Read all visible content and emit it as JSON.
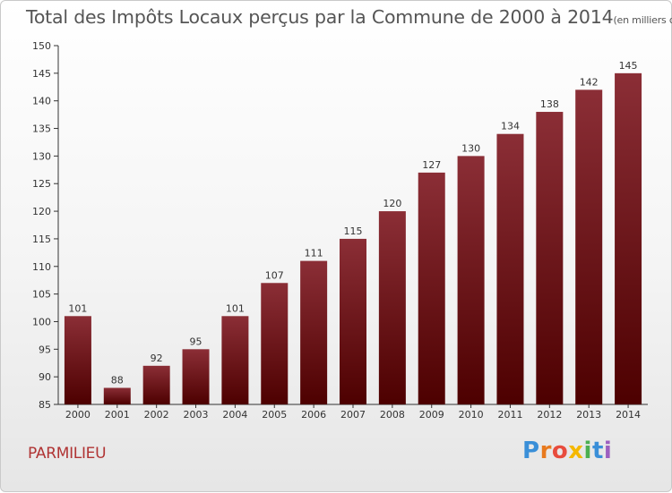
{
  "header": {
    "title": "Total des Impôts Locaux perçus par la Commune de 2000 à 2014",
    "unit": "(en milliers d'€)"
  },
  "footer": {
    "commune": "PARMILIEU",
    "logo_text": "Proxiti",
    "logo_colors": [
      "#3a8fd8",
      "#e87a1e",
      "#e84c3d",
      "#f5b800",
      "#4caf50",
      "#3a8fd8",
      "#9c5fc0"
    ]
  },
  "chart_data": {
    "type": "bar",
    "title": "Total des Impôts Locaux perçus par la Commune de 2000 à 2014",
    "subtitle": "(en milliers d'€)",
    "xlabel": "",
    "ylabel": "",
    "categories": [
      "2000",
      "2001",
      "2002",
      "2003",
      "2004",
      "2005",
      "2006",
      "2007",
      "2008",
      "2009",
      "2010",
      "2011",
      "2012",
      "2013",
      "2014"
    ],
    "values": [
      101,
      88,
      92,
      95,
      101,
      107,
      111,
      115,
      120,
      127,
      130,
      134,
      138,
      142,
      145
    ],
    "ylim": [
      85,
      150
    ],
    "yticks": [
      85,
      90,
      95,
      100,
      105,
      110,
      115,
      120,
      125,
      130,
      135,
      140,
      145,
      150
    ],
    "grid": false,
    "legend": "none",
    "bar_color_top": "#8b2e36",
    "bar_color_bottom": "#4d0000"
  }
}
